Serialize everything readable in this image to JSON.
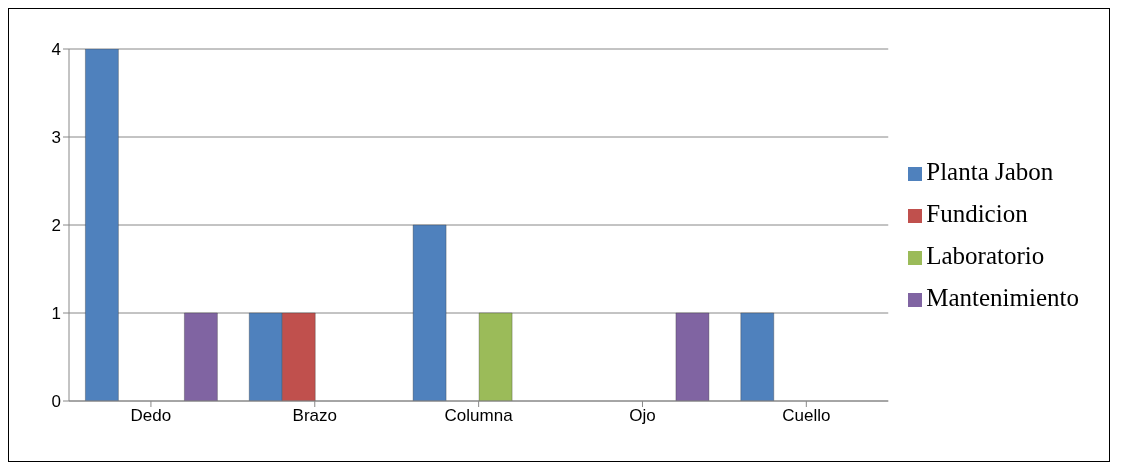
{
  "chart_data": {
    "type": "bar",
    "categories": [
      "Dedo",
      "Brazo",
      "Columna",
      "Ojo",
      "Cuello"
    ],
    "series": [
      {
        "name": "Planta Jabon",
        "color": "#4f81bd",
        "values": [
          4,
          1,
          2,
          null,
          1
        ]
      },
      {
        "name": "Fundicion",
        "color": "#c0504d",
        "values": [
          null,
          1,
          null,
          null,
          null
        ]
      },
      {
        "name": "Laboratorio",
        "color": "#9bbb59",
        "values": [
          null,
          null,
          1,
          null,
          null
        ]
      },
      {
        "name": "Mantenimiento",
        "color": "#8064a2",
        "values": [
          1,
          null,
          null,
          1,
          null
        ]
      }
    ],
    "ylim": [
      0,
      4
    ],
    "yticks": [
      0,
      1,
      2,
      3,
      4
    ],
    "grid": "y",
    "legend": "right"
  }
}
